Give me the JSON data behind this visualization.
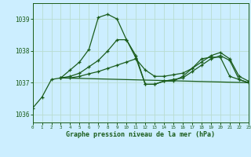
{
  "title": "Graphe pression niveau de la mer (hPa)",
  "background_color": "#cceeff",
  "grid_color": "#b8ddd0",
  "line_color": "#1a5c1a",
  "xlim": [
    0,
    23
  ],
  "ylim": [
    1035.75,
    1039.5
  ],
  "yticks": [
    1036,
    1037,
    1038,
    1039
  ],
  "xticks": [
    0,
    1,
    2,
    3,
    4,
    5,
    6,
    7,
    8,
    9,
    10,
    11,
    12,
    13,
    14,
    15,
    16,
    17,
    18,
    19,
    20,
    21,
    22,
    23
  ],
  "series": [
    {
      "x": [
        0,
        1,
        2,
        3,
        4,
        5,
        6,
        7,
        8,
        9,
        10,
        11,
        12,
        13,
        14,
        15,
        16,
        17,
        18,
        19,
        20,
        21,
        22,
        23
      ],
      "y": [
        1036.2,
        1036.55,
        1037.1,
        1037.15,
        1037.4,
        1037.65,
        1038.05,
        1039.05,
        1039.15,
        1039.0,
        1038.35,
        1037.85,
        1036.95,
        1036.95,
        1037.05,
        1037.05,
        1037.2,
        1037.45,
        1037.75,
        1037.8,
        1037.8,
        1037.2,
        1037.1,
        1037.0
      ]
    },
    {
      "x": [
        3,
        4,
        5,
        6,
        7,
        8,
        9,
        10,
        11,
        12,
        13,
        14,
        15,
        16,
        17,
        18,
        19,
        20,
        21,
        22,
        23
      ],
      "y": [
        1037.15,
        1037.15,
        1037.2,
        1037.28,
        1037.35,
        1037.45,
        1037.55,
        1037.65,
        1037.75,
        1037.4,
        1037.2,
        1037.2,
        1037.25,
        1037.3,
        1037.45,
        1037.65,
        1037.85,
        1037.95,
        1037.75,
        1037.2,
        1037.05
      ]
    },
    {
      "x": [
        3,
        4,
        5,
        6,
        7,
        8,
        9,
        10,
        11,
        12,
        13,
        14,
        15,
        16,
        17,
        18,
        19,
        20,
        21,
        22,
        23
      ],
      "y": [
        1037.15,
        1037.2,
        1037.3,
        1037.5,
        1037.7,
        1038.0,
        1038.35,
        1038.35,
        1037.78,
        1036.95,
        1036.95,
        1037.05,
        1037.1,
        1037.15,
        1037.35,
        1037.55,
        1037.75,
        1037.85,
        1037.7,
        1037.1,
        1037.0
      ]
    },
    {
      "x": [
        3,
        23
      ],
      "y": [
        1037.15,
        1037.0
      ]
    }
  ]
}
